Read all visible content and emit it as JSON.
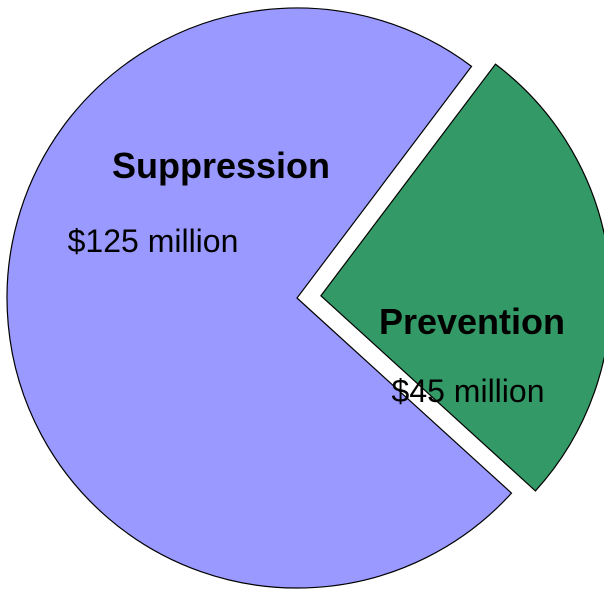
{
  "chart_data": {
    "type": "pie",
    "exploded": true,
    "slices": [
      {
        "name": "Suppression",
        "value_label": "$125 million",
        "value": 125,
        "color": "#9999ff"
      },
      {
        "name": "Prevention",
        "value_label": "$45 million",
        "value": 45,
        "color": "#339966"
      }
    ]
  }
}
